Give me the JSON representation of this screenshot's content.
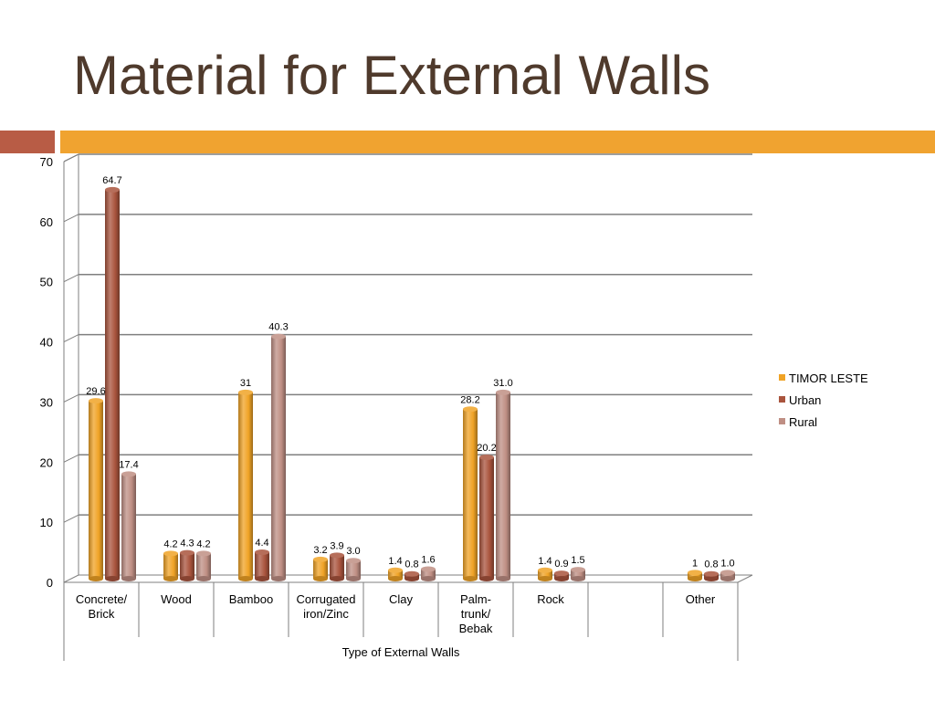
{
  "title": "Material for External Walls",
  "colors": {
    "title": "#4f3a2c",
    "accent_left": "#b85c45",
    "accent_right": "#f0a330"
  },
  "chart_data": {
    "type": "bar",
    "xlabel": "Type of External Walls",
    "ylabel": "",
    "ylim": [
      0,
      70
    ],
    "yticks": [
      0,
      10,
      20,
      30,
      40,
      50,
      60,
      70
    ],
    "grid": true,
    "legend_position": "right",
    "categories": [
      "Concrete/\nBrick",
      "Wood",
      "Bamboo",
      "Corrugated\niron/Zinc",
      "Clay",
      "Palm-\ntrunk/\nBebak",
      "Rock",
      "",
      "Other"
    ],
    "series": [
      {
        "name": "TIMOR LESTE",
        "color": "#f0a326",
        "values": [
          29.6,
          4.2,
          31,
          3.2,
          1.4,
          28.2,
          1.4,
          null,
          1
        ],
        "labels": [
          "29.6",
          "4.2",
          "31",
          "3.2",
          "1.4",
          "28.2",
          "1.4",
          "",
          "1"
        ]
      },
      {
        "name": "Urban",
        "color": "#a9543d",
        "values": [
          64.7,
          4.3,
          4.4,
          3.9,
          0.8,
          20.2,
          0.9,
          null,
          0.8
        ],
        "labels": [
          "64.7",
          "4.3",
          "4.4",
          "3.9",
          "0.8",
          "20.2",
          "0.9",
          "",
          "0.8"
        ]
      },
      {
        "name": "Rural",
        "color": "#bf8f84",
        "values": [
          17.4,
          4.2,
          40.3,
          3.0,
          1.6,
          31.0,
          1.5,
          null,
          1.0
        ],
        "labels": [
          "17.4",
          "4.2",
          "40.3",
          "3.0",
          "1.6",
          "31.0",
          "1.5",
          "",
          "1.0"
        ]
      }
    ]
  }
}
